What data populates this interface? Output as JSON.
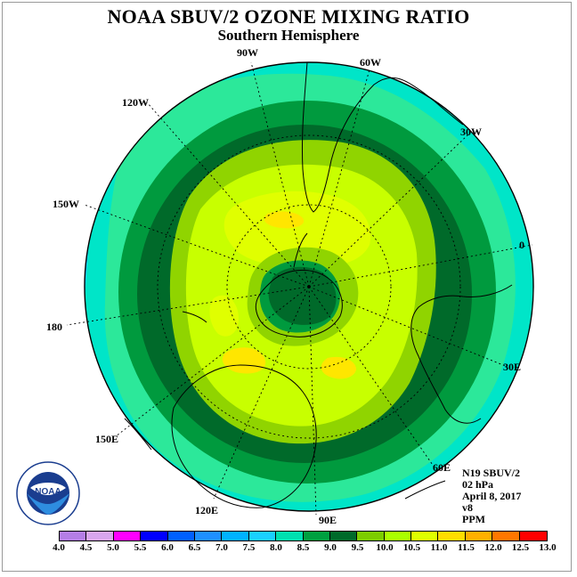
{
  "title": "NOAA SBUV/2 OZONE MIXING RATIO",
  "subtitle": "Southern Hemisphere",
  "longitude_labels": [
    "90W",
    "60W",
    "30W",
    "0",
    "30E",
    "60E",
    "90E",
    "120E",
    "150E",
    "180",
    "150W",
    "120W"
  ],
  "info": {
    "satellite": "N19 SBUV/2",
    "level": "02 hPa",
    "date": "April 8, 2017",
    "version": "v8",
    "units": "PPM"
  },
  "logo": {
    "text": "NOAA",
    "ring_text": "NATIONAL OCEANIC AND ATMOSPHERIC ADMINISTRATION · U.S. DEPARTMENT OF COMMERCE"
  },
  "colorbar": {
    "ticks": [
      "4.0",
      "4.5",
      "5.0",
      "5.5",
      "6.0",
      "6.5",
      "7.0",
      "7.5",
      "8.0",
      "8.5",
      "9.0",
      "9.5",
      "10.0",
      "10.5",
      "11.0",
      "11.5",
      "12.0",
      "12.5",
      "13.0"
    ],
    "colors": [
      "#b57ee6",
      "#d9a6ee",
      "#ff00ff",
      "#0000ff",
      "#0060ff",
      "#1e90ff",
      "#00b2ff",
      "#1ad0ff",
      "#00e0b0",
      "#00a040",
      "#006a2a",
      "#7ccd00",
      "#aaff00",
      "#dfff00",
      "#ffdd00",
      "#ffb000",
      "#ff7700",
      "#ff0000",
      "#8b5a2b"
    ]
  },
  "field": {
    "outer_band": "7.5-8.0",
    "ring_band": "8.5-9.0",
    "interior": "9.5-10.5",
    "pole_minimum": "8.5-9.0"
  }
}
